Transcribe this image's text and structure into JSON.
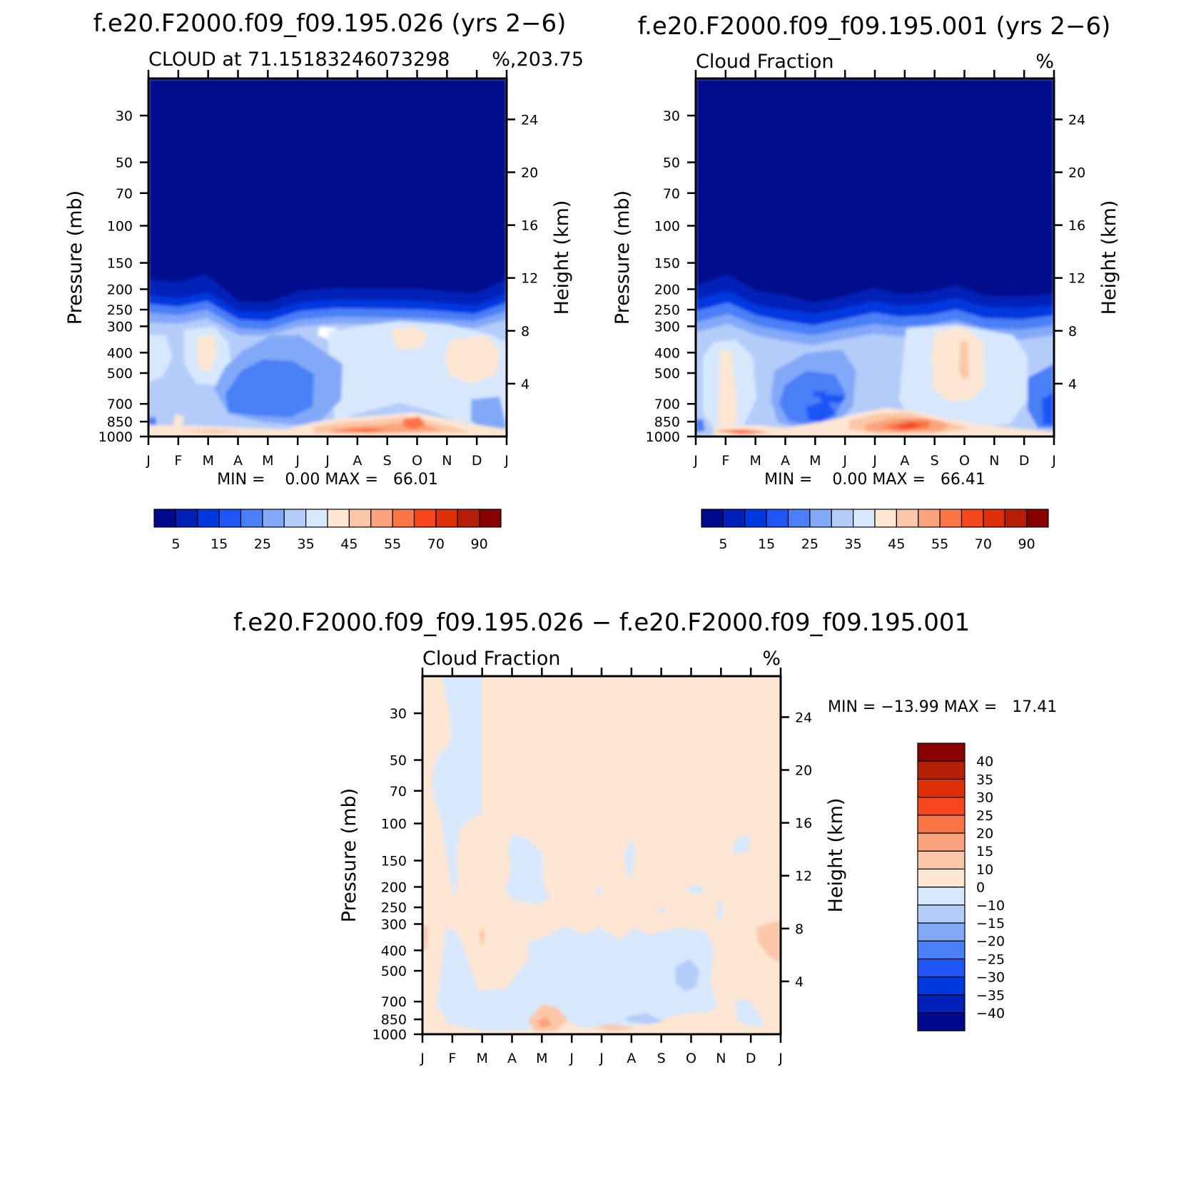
{
  "figure": {
    "background": "#ffffff"
  },
  "panels": [
    {
      "id": "p1",
      "title": "f.e20.F2000.f09_f09.195.026 (yrs 2−6)",
      "left_label": "CLOUD at 71.15183246073298",
      "right_label": "%,203.75",
      "min_max": "MIN =    0.00 MAX =   66.01",
      "y_label": "Pressure (mb)",
      "y2_label": "Height (km)"
    },
    {
      "id": "p2",
      "title": "f.e20.F2000.f09_f09.195.001 (yrs 2−6)",
      "left_label": "Cloud Fraction",
      "right_label": "%",
      "min_max": "MIN =    0.00 MAX =   66.41",
      "y_label": "Pressure (mb)",
      "y2_label": "Height (km)"
    },
    {
      "id": "p3",
      "title": "f.e20.F2000.f09_f09.195.026 − f.e20.F2000.f09_f09.195.001",
      "left_label": "Cloud Fraction",
      "right_label": "%",
      "min_max": "MIN = −13.99 MAX =   17.41",
      "y_label": "Pressure (mb)",
      "y2_label": "Height (km)"
    }
  ],
  "chart_data": [
    {
      "type": "heatmap",
      "title": "f.e20.F2000.f09_f09.195.026 (yrs 2−6)",
      "subtitle": "CLOUD at 71.15183246073298 %,203.75",
      "xlabel": "",
      "ylabel": "Pressure (mb)",
      "y2label": "Height (km)",
      "x_ticks": [
        "J",
        "F",
        "M",
        "A",
        "M",
        "J",
        "J",
        "A",
        "S",
        "O",
        "N",
        "D",
        "J"
      ],
      "pressure_ticks": [
        30,
        50,
        70,
        100,
        150,
        200,
        250,
        300,
        400,
        500,
        700,
        850,
        1000
      ],
      "pressure_range": [
        20,
        1000
      ],
      "height_ticks": [
        4,
        8,
        12,
        16,
        20,
        24
      ],
      "levels": [
        5,
        10,
        15,
        20,
        25,
        30,
        35,
        40,
        45,
        50,
        55,
        60,
        70,
        80,
        90
      ],
      "level_labels": [
        "5",
        "15",
        "25",
        "35",
        "45",
        "55",
        "70",
        "90"
      ],
      "colors": [
        "#000a8c",
        "#0020b8",
        "#0038e0",
        "#1f55f5",
        "#4a7ff7",
        "#82a8f8",
        "#b4ccfa",
        "#d8e8fc",
        "#fde6d2",
        "#fcc7a8",
        "#fba37c",
        "#fa7445",
        "#f5461c",
        "#dd2f08",
        "#b51f05",
        "#880000"
      ],
      "min": 0.0,
      "max": 66.01
    },
    {
      "type": "heatmap",
      "title": "f.e20.F2000.f09_f09.195.001 (yrs 2−6)",
      "subtitle": "Cloud Fraction %",
      "xlabel": "",
      "ylabel": "Pressure (mb)",
      "y2label": "Height (km)",
      "x_ticks": [
        "J",
        "F",
        "M",
        "A",
        "M",
        "J",
        "J",
        "A",
        "S",
        "O",
        "N",
        "D",
        "J"
      ],
      "pressure_ticks": [
        30,
        50,
        70,
        100,
        150,
        200,
        250,
        300,
        400,
        500,
        700,
        850,
        1000
      ],
      "pressure_range": [
        20,
        1000
      ],
      "height_ticks": [
        4,
        8,
        12,
        16,
        20,
        24
      ],
      "levels": [
        5,
        10,
        15,
        20,
        25,
        30,
        35,
        40,
        45,
        50,
        55,
        60,
        70,
        80,
        90
      ],
      "level_labels": [
        "5",
        "15",
        "25",
        "35",
        "45",
        "55",
        "70",
        "90"
      ],
      "colors": [
        "#000a8c",
        "#0020b8",
        "#0038e0",
        "#1f55f5",
        "#4a7ff7",
        "#82a8f8",
        "#b4ccfa",
        "#d8e8fc",
        "#fde6d2",
        "#fcc7a8",
        "#fba37c",
        "#fa7445",
        "#f5461c",
        "#dd2f08",
        "#b51f05",
        "#880000"
      ],
      "min": 0.0,
      "max": 66.41
    },
    {
      "type": "heatmap",
      "title": "f.e20.F2000.f09_f09.195.026 − f.e20.F2000.f09_f09.195.001",
      "subtitle": "Cloud Fraction %",
      "xlabel": "",
      "ylabel": "Pressure (mb)",
      "y2label": "Height (km)",
      "x_ticks": [
        "J",
        "F",
        "M",
        "A",
        "M",
        "J",
        "J",
        "A",
        "S",
        "O",
        "N",
        "D",
        "J"
      ],
      "pressure_ticks": [
        30,
        50,
        70,
        100,
        150,
        200,
        250,
        300,
        400,
        500,
        700,
        850,
        1000
      ],
      "pressure_range": [
        20,
        1000
      ],
      "height_ticks": [
        4,
        8,
        12,
        16,
        20,
        24
      ],
      "levels": [
        -40,
        -35,
        -30,
        -25,
        -20,
        -15,
        -10,
        0,
        10,
        15,
        20,
        25,
        30,
        35,
        40
      ],
      "level_labels": [
        "40",
        "35",
        "30",
        "25",
        "20",
        "15",
        "10",
        "0",
        "−10",
        "−15",
        "−20",
        "−25",
        "−30",
        "−35",
        "−40"
      ],
      "colors": [
        "#000a8c",
        "#0020b8",
        "#0038e0",
        "#1f55f5",
        "#4a7ff7",
        "#82a8f8",
        "#b4ccfa",
        "#d8e8fc",
        "#fde6d2",
        "#fcc7a8",
        "#fba37c",
        "#fa7445",
        "#f5461c",
        "#dd2f08",
        "#b51f05",
        "#880000"
      ],
      "min": -13.99,
      "max": 17.41
    }
  ]
}
